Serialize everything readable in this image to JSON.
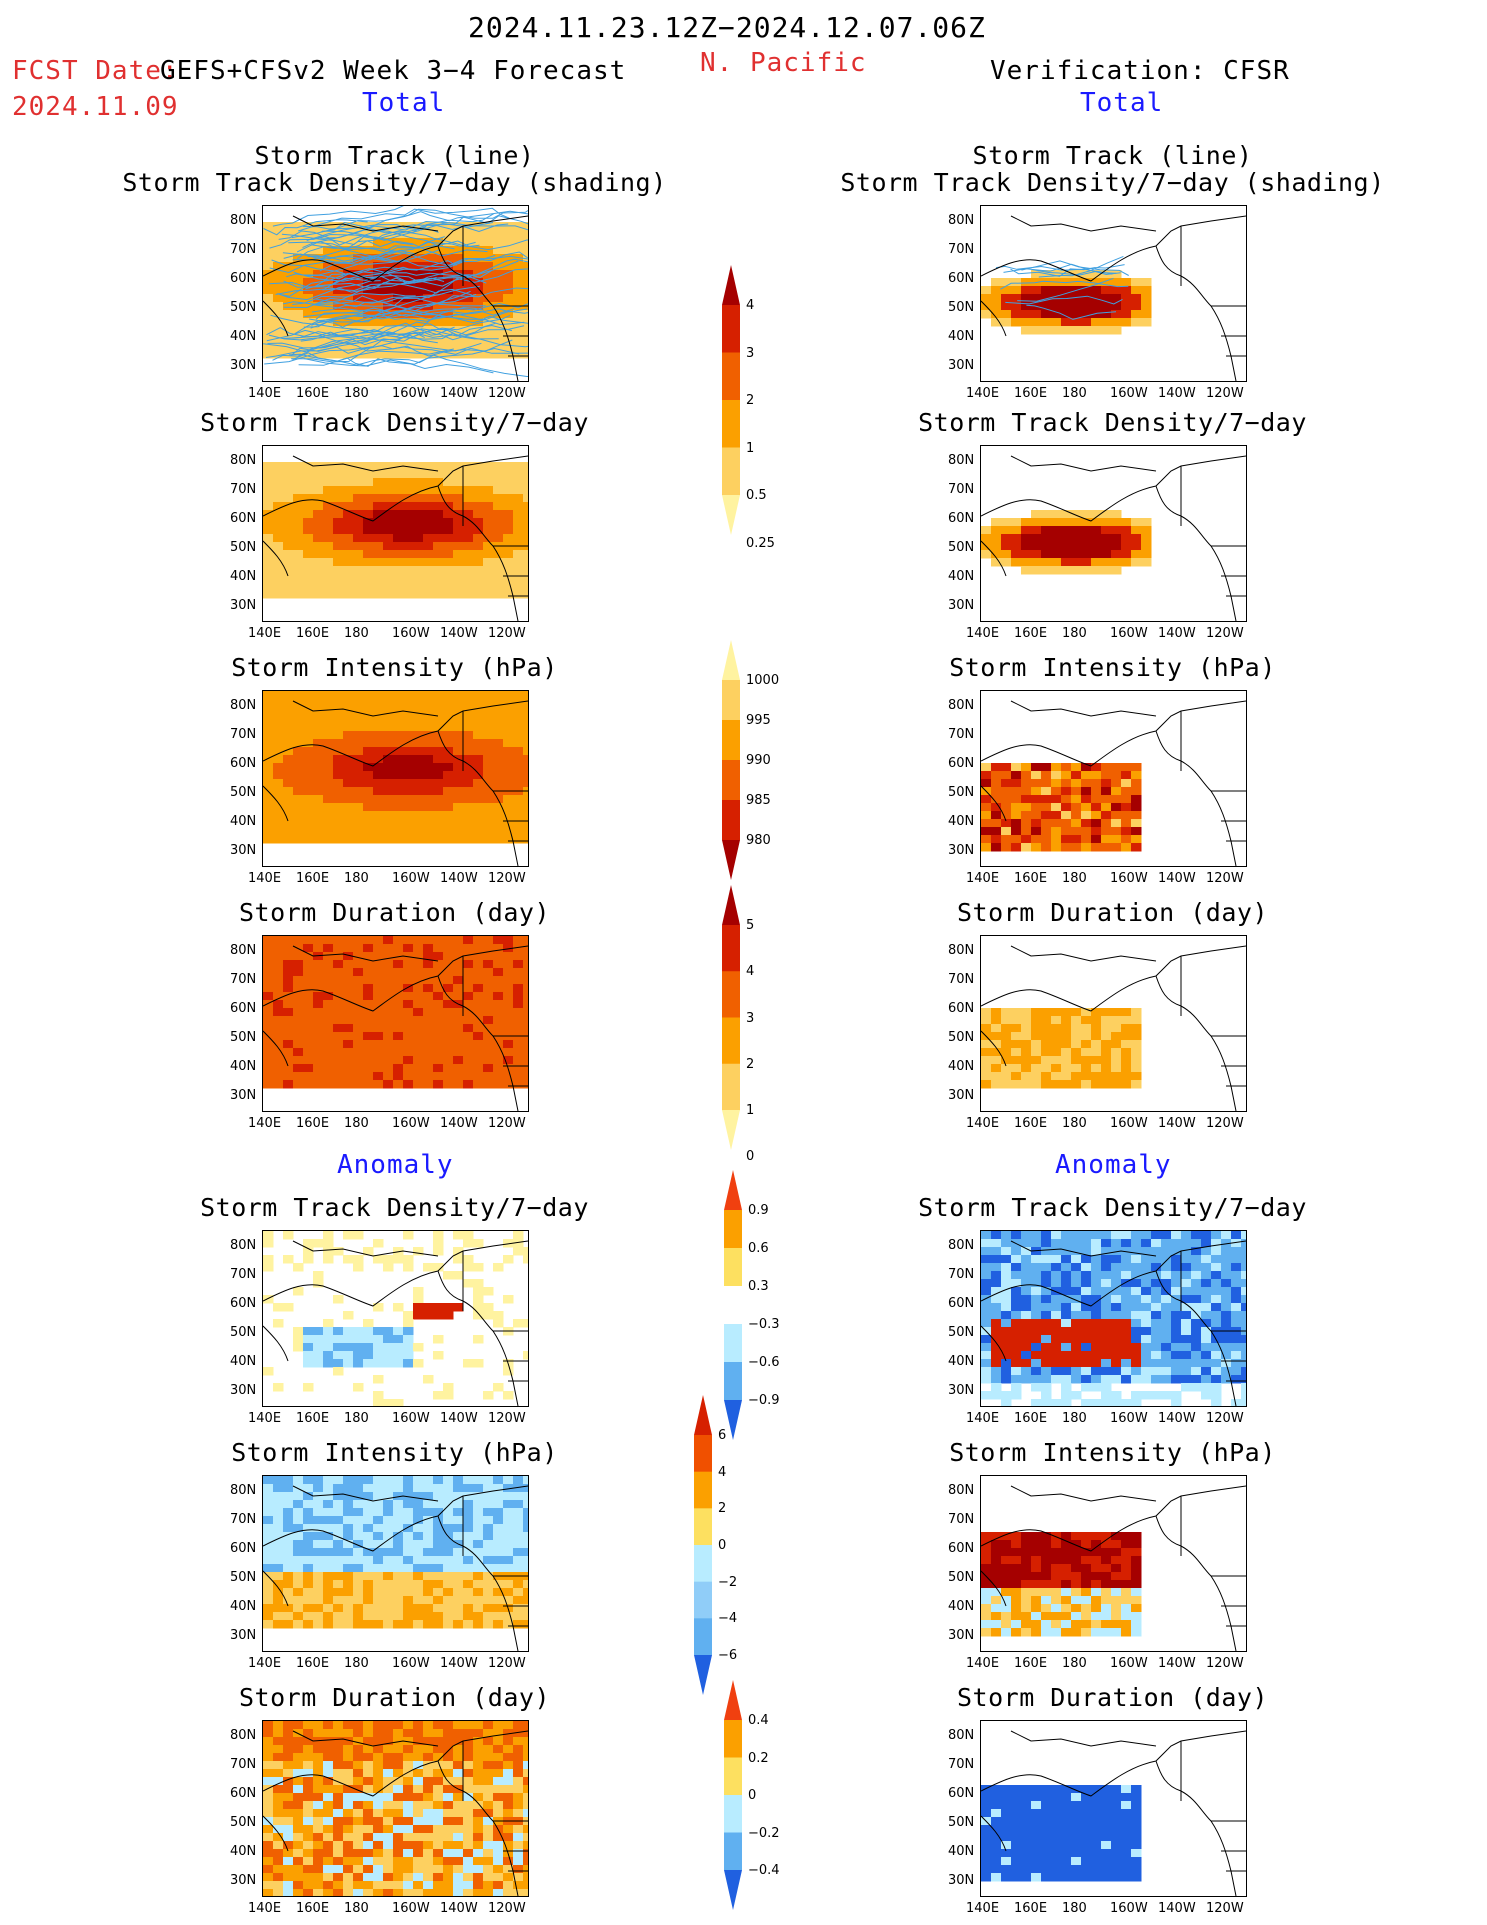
{
  "header": {
    "date_range": "2024.11.23.12Z−2024.12.07.06Z",
    "fcst_label": "FCST Date:",
    "fcst_date": "2024.11.09",
    "forecast_title": "GEFS+CFSv2 Week 3−4 Forecast",
    "region": "N. Pacific",
    "verification": "Verification: CFSR"
  },
  "sections": {
    "total": "Total",
    "anomaly": "Anomaly"
  },
  "axes": {
    "lon_ticks": [
      "140E",
      "160E",
      "180",
      "160W",
      "140W",
      "120W"
    ],
    "lat_ticks": [
      "80N",
      "70N",
      "60N",
      "50N",
      "40N",
      "30N"
    ]
  },
  "panels": [
    {
      "row": 0,
      "title1": "Storm Track (line)",
      "title2": "Storm Track Density/7−day (shading)"
    },
    {
      "row": 1,
      "title1": "",
      "title2": "Storm Track Density/7−day"
    },
    {
      "row": 2,
      "title1": "",
      "title2": "Storm Intensity (hPa)"
    },
    {
      "row": 3,
      "title1": "",
      "title2": "Storm Duration (day)"
    },
    {
      "row": 4,
      "title1": "",
      "title2": "Storm Track Density/7−day"
    },
    {
      "row": 5,
      "title1": "",
      "title2": "Storm Intensity (hPa)"
    },
    {
      "row": 6,
      "title1": "",
      "title2": "Storm Duration (day)"
    }
  ],
  "colorbars": [
    {
      "name": "density-total",
      "labels": [
        "4",
        "3",
        "2",
        "1",
        "0.5",
        "0.25"
      ],
      "colors": [
        "#a50000",
        "#d62000",
        "#f06000",
        "#fba000",
        "#fdd060",
        "#fff3a0"
      ]
    },
    {
      "name": "intensity-total",
      "labels": [
        "1000",
        "995",
        "990",
        "985",
        "980"
      ],
      "colors": [
        "#fff3a0",
        "#fdd060",
        "#fba000",
        "#f06000",
        "#d62000",
        "#a50000"
      ]
    },
    {
      "name": "duration-total",
      "labels": [
        "5",
        "4",
        "3",
        "2",
        "1",
        "0"
      ],
      "colors": [
        "#a50000",
        "#d62000",
        "#f06000",
        "#fba000",
        "#fdd060",
        "#fff3a0"
      ]
    },
    {
      "name": "density-anom",
      "labels": [
        "0.9",
        "0.6",
        "0.3",
        "−0.3",
        "−0.6",
        "−0.9"
      ],
      "colors": [
        "#f04010",
        "#fba000",
        "#fde060",
        "#ffffff",
        "#b8ecff",
        "#60b0f0",
        "#2060e0"
      ]
    },
    {
      "name": "intensity-anom",
      "labels": [
        "6",
        "4",
        "2",
        "0",
        "−2",
        "−4",
        "−6"
      ],
      "colors": [
        "#d62000",
        "#f05000",
        "#fba000",
        "#fde060",
        "#b8ecff",
        "#90cdf8",
        "#60b0f0",
        "#2060e0"
      ]
    },
    {
      "name": "duration-anom",
      "labels": [
        "0.4",
        "0.2",
        "0",
        "−0.2",
        "−0.4"
      ],
      "colors": [
        "#f04010",
        "#fba000",
        "#fde060",
        "#b8ecff",
        "#60b0f0",
        "#2060e0"
      ]
    }
  ],
  "map_colors": {
    "dark_red": "#a50000",
    "red": "#d62000",
    "orange_red": "#f06000",
    "orange": "#fba000",
    "light_orange": "#fdd060",
    "pale_yellow": "#fff3a0",
    "light_blue": "#b8ecff",
    "mid_blue": "#60b0f0",
    "blue": "#2060e0",
    "track_line": "#40a0e0"
  }
}
